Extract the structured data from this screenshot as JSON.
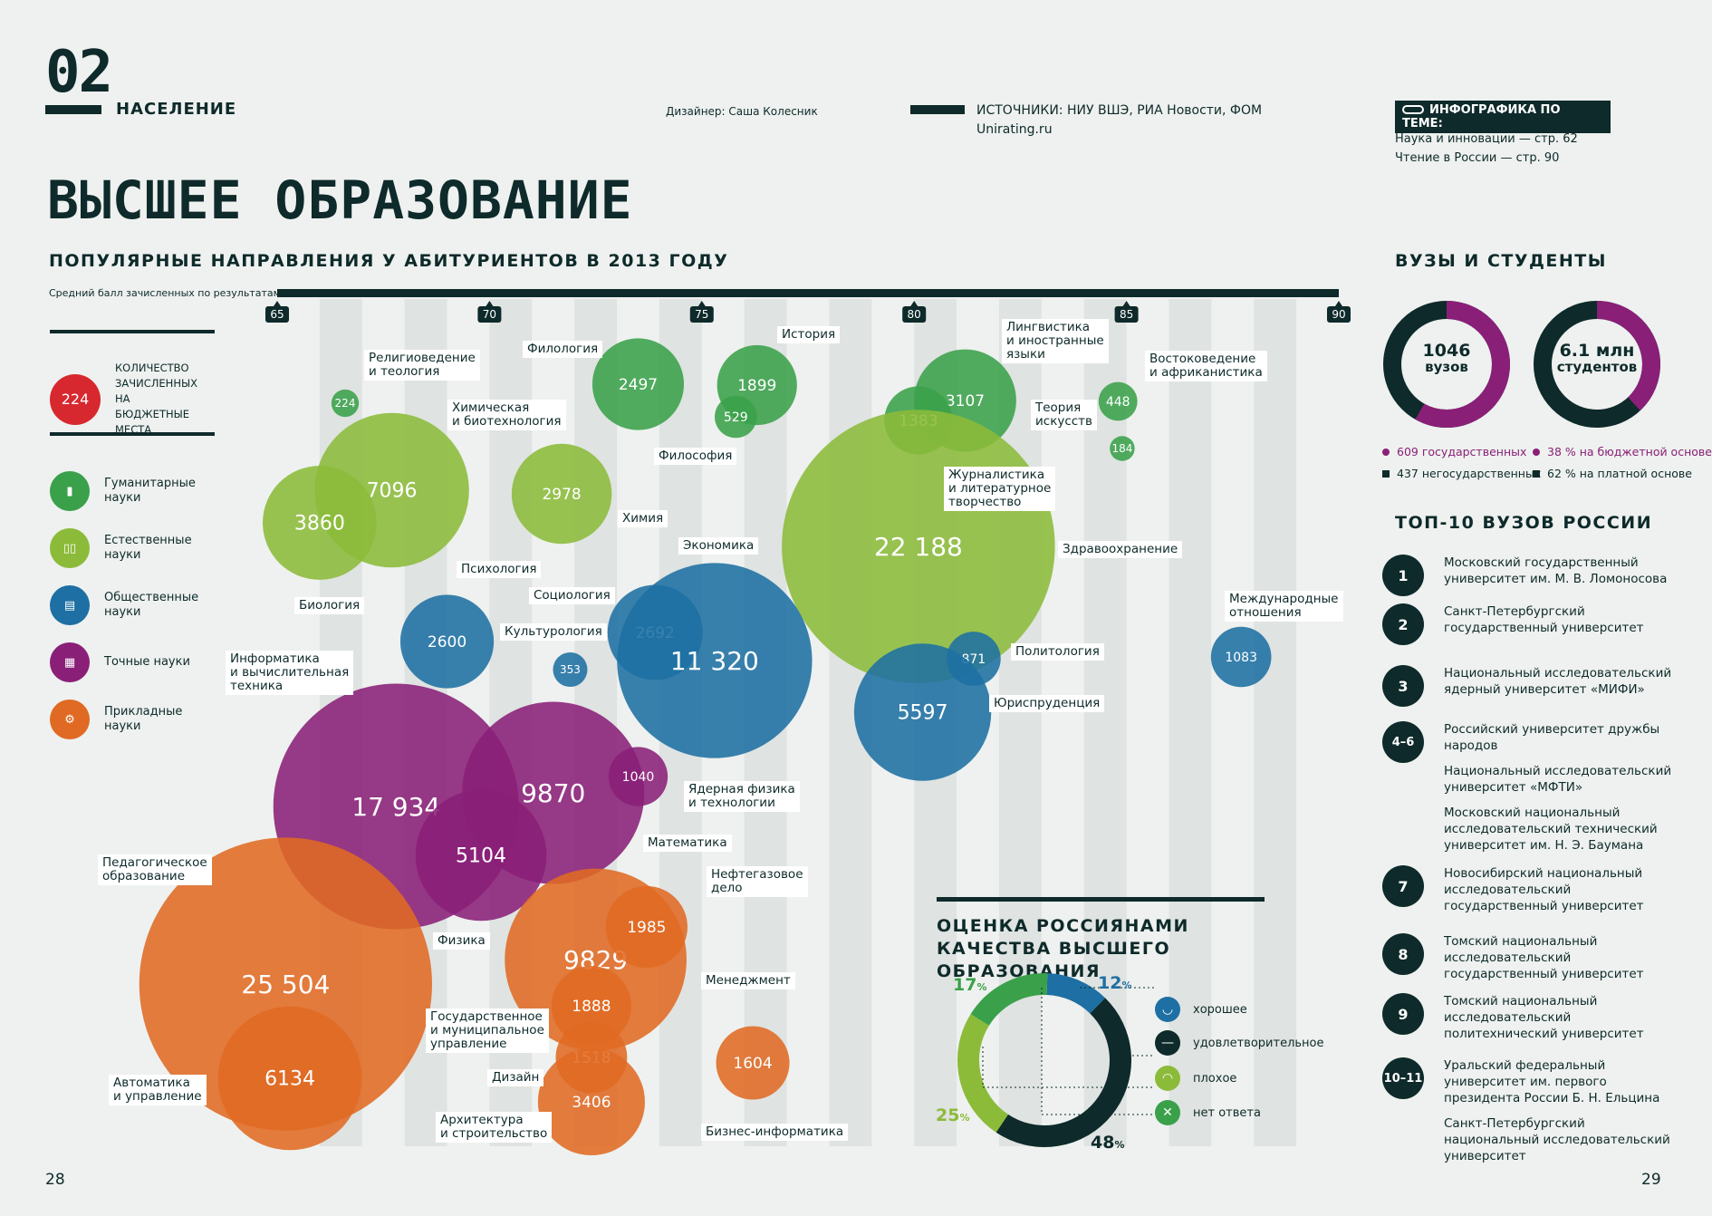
{
  "header": {
    "section_number": "02",
    "section_label": "НАСЕЛЕНИЕ",
    "designer": "Дизайнер: Саша Колесник",
    "sources_line1": "ИСТОЧНИКИ: НИУ ВШЭ, РИА Новости, ФОМ",
    "sources_line2": "Unirating.ru",
    "related_title": "ИНФОГРАФИКА ПО ТЕМЕ:",
    "related_1": "Наука и инновации — стр. 62",
    "related_2": "Чтение в России — стр. 90"
  },
  "main_title": "ВЫСШЕЕ ОБРАЗОВАНИЕ",
  "colors": {
    "humanities": "#3aa04a",
    "natural": "#8cbb3a",
    "social": "#1e6fa3",
    "exact": "#8a1f78",
    "applied": "#e06a23",
    "legend_red": "#d7282f",
    "dark": "#0e2a2a"
  },
  "legend": {
    "size_value": "224",
    "size_text": "КОЛИЧЕСТВО ЗАЧИСЛЕННЫХ НА БЮДЖЕТНЫЕ МЕСТА",
    "items": [
      {
        "label": "Гуманитарные науки",
        "icon": "book-icon"
      },
      {
        "label": "Естественные науки",
        "icon": "test-tubes-icon"
      },
      {
        "label": "Общественные науки",
        "icon": "presentation-icon"
      },
      {
        "label": "Точные науки",
        "icon": "calculator-icon"
      },
      {
        "label": "Прикладные науки",
        "icon": "gears-icon"
      }
    ]
  },
  "chart_data": {
    "type": "bubble",
    "title": "ПОПУЛЯРНЫЕ НАПРАВЛЕНИЯ У АБИТУРИЕНТОВ В 2013 ГОДУ",
    "xlabel": "Средний балл зачисленных по результатам ЕГЭ:",
    "xticks": [
      "65",
      "70",
      "75",
      "80",
      "85",
      "90"
    ],
    "xlim": [
      65,
      90
    ],
    "size_measure": "КОЛИЧЕСТВО ЗАЧИСЛЕННЫХ НА БЮДЖЕТНЫЕ МЕСТА",
    "bubbles": [
      {
        "name": "Религиоведение и теология",
        "score": 66.6,
        "value": 224,
        "value_label": "224",
        "group": "humanities"
      },
      {
        "name": "Филология",
        "score": 73.5,
        "value": 2497,
        "value_label": "2497",
        "group": "humanities"
      },
      {
        "name": "История",
        "score": 76.3,
        "value": 1899,
        "value_label": "1899",
        "group": "humanities"
      },
      {
        "name": "Философия",
        "score": 75.8,
        "value": 529,
        "value_label": "529",
        "group": "humanities"
      },
      {
        "name": "Лингвистика и иностранные языки",
        "score": 81.2,
        "value": 3107,
        "value_label": "3107",
        "group": "humanities"
      },
      {
        "name": "Журналистика и литературное творчество",
        "score": 80.1,
        "value": 1383,
        "value_label": "1383",
        "group": "humanities"
      },
      {
        "name": "Теория искусств",
        "score": 84.8,
        "value": 448,
        "value_label": "448",
        "group": "humanities"
      },
      {
        "name": "Востоковедение и африканистика",
        "score": 84.9,
        "value": 184,
        "value_label": "184",
        "group": "humanities"
      },
      {
        "name": "Химическая и биотехнология",
        "score": 67.7,
        "value": 7096,
        "value_label": "7096",
        "group": "natural"
      },
      {
        "name": "Биология",
        "score": 66.0,
        "value": 3860,
        "value_label": "3860",
        "group": "natural"
      },
      {
        "name": "Химия",
        "score": 71.7,
        "value": 2978,
        "value_label": "2978",
        "group": "natural"
      },
      {
        "name": "Здравоохранение",
        "score": 80.1,
        "value": 22188,
        "value_label": "22 188",
        "group": "natural"
      },
      {
        "name": "Психология",
        "score": 69.0,
        "value": 2600,
        "value_label": "2600",
        "group": "social"
      },
      {
        "name": "Культурология",
        "score": 71.9,
        "value": 353,
        "value_label": "353",
        "group": "social"
      },
      {
        "name": "Социология",
        "score": 73.9,
        "value": 2692,
        "value_label": "2692",
        "group": "social"
      },
      {
        "name": "Экономика",
        "score": 75.3,
        "value": 11320,
        "value_label": "11 320",
        "group": "social"
      },
      {
        "name": "Политология",
        "score": 81.4,
        "value": 871,
        "value_label": "871",
        "group": "social"
      },
      {
        "name": "Юриспруденция",
        "score": 80.2,
        "value": 5597,
        "value_label": "5597",
        "group": "social"
      },
      {
        "name": "Международные отношения",
        "score": 87.7,
        "value": 1083,
        "value_label": "1083",
        "group": "social"
      },
      {
        "name": "Информатика и вычислительная техника",
        "score": 67.8,
        "value": 17934,
        "value_label": "17 934",
        "group": "exact"
      },
      {
        "name": "Математика",
        "score": 71.5,
        "value": 9870,
        "value_label": "9870",
        "group": "exact"
      },
      {
        "name": "Физика",
        "score": 69.8,
        "value": 5104,
        "value_label": "5104",
        "group": "exact"
      },
      {
        "name": "Ядерная физика и технологии",
        "score": 73.5,
        "value": 1040,
        "value_label": "1040",
        "group": "exact"
      },
      {
        "name": "Педагогическое образование",
        "score": 65.2,
        "value": 25504,
        "value_label": "25 504",
        "group": "applied"
      },
      {
        "name": "Автоматика и управление",
        "score": 65.3,
        "value": 6134,
        "value_label": "6134",
        "group": "applied"
      },
      {
        "name": "Менеджмент",
        "score": 72.5,
        "value": 9829,
        "value_label": "9829",
        "group": "applied"
      },
      {
        "name": "Нефтегазовое дело",
        "score": 73.7,
        "value": 1985,
        "value_label": "1985",
        "group": "applied"
      },
      {
        "name": "Государственное и муниципальное управление",
        "score": 72.4,
        "value": 1888,
        "value_label": "1888",
        "group": "applied"
      },
      {
        "name": "Дизайн",
        "score": 72.4,
        "value": 1518,
        "value_label": "1518",
        "group": "applied"
      },
      {
        "name": "Архитектура и строительство",
        "score": 72.4,
        "value": 3406,
        "value_label": "3406",
        "group": "applied"
      },
      {
        "name": "Бизнес-информатика",
        "score": 76.2,
        "value": 1604,
        "value_label": "1604",
        "group": "applied"
      }
    ]
  },
  "universities_students": {
    "title": "ВУЗЫ И СТУДЕНТЫ",
    "ring1": {
      "value": "1046",
      "unit": "вузов",
      "fraction_purple": 0.582
    },
    "ring2": {
      "value": "6.1 млн",
      "unit": "студентов",
      "fraction_purple": 0.38
    },
    "legend1_purple": "609 государственных",
    "legend1_dark": "437 негосударственных",
    "legend2_purple": "38 % на бюджетной основе",
    "legend2_dark": "62 % на платной основе"
  },
  "top10": {
    "title": "ТОП-10 ВУЗОВ РОССИИ",
    "items": [
      {
        "rank": "1",
        "names": [
          "Московский государственный университет им. М. В. Ломоносова"
        ]
      },
      {
        "rank": "2",
        "names": [
          "Санкт-Петербургский государственный университет"
        ]
      },
      {
        "rank": "3",
        "names": [
          "Национальный исследовательский ядерный университет «МИФИ»"
        ]
      },
      {
        "rank": "4–6",
        "names": [
          "Российский университет дружбы народов",
          "Национальный исследовательский университет «МФТИ»",
          "Московский национальный исследовательский технический университет им. Н. Э. Баумана"
        ]
      },
      {
        "rank": "7",
        "names": [
          "Новосибирский национальный исследовательский государственный университет"
        ]
      },
      {
        "rank": "8",
        "names": [
          "Томский национальный исследовательский государственный университет"
        ]
      },
      {
        "rank": "9",
        "names": [
          "Томский национальный исследовательский политехнический университет"
        ]
      },
      {
        "rank": "10–11",
        "names": [
          "Уральский федеральный университет им. первого президента России Б. Н. Ельцина",
          "Санкт-Петербургский национальный исследовательский университет"
        ]
      }
    ]
  },
  "quality": {
    "title": "ОЦЕНКА РОССИЯНАМИ КАЧЕСТВА ВЫСШЕГО ОБРАЗОВАНИЯ",
    "segments": [
      {
        "label": "хорошее",
        "percent": 12,
        "pct_label": "12",
        "color": "#1e6fa3",
        "icon": "smile-icon"
      },
      {
        "label": "удовлетворительное",
        "percent": 48,
        "pct_label": "48",
        "color": "#0e2a2a",
        "icon": "neutral-icon"
      },
      {
        "label": "плохое",
        "percent": 25,
        "pct_label": "25",
        "color": "#8cbb3a",
        "icon": "frown-icon"
      },
      {
        "label": "нет ответа",
        "percent": 17,
        "pct_label": "17",
        "color": "#3aa04a",
        "icon": "cross-icon"
      }
    ],
    "pct_sign": "%"
  },
  "pages": {
    "left": "28",
    "right": "29"
  }
}
